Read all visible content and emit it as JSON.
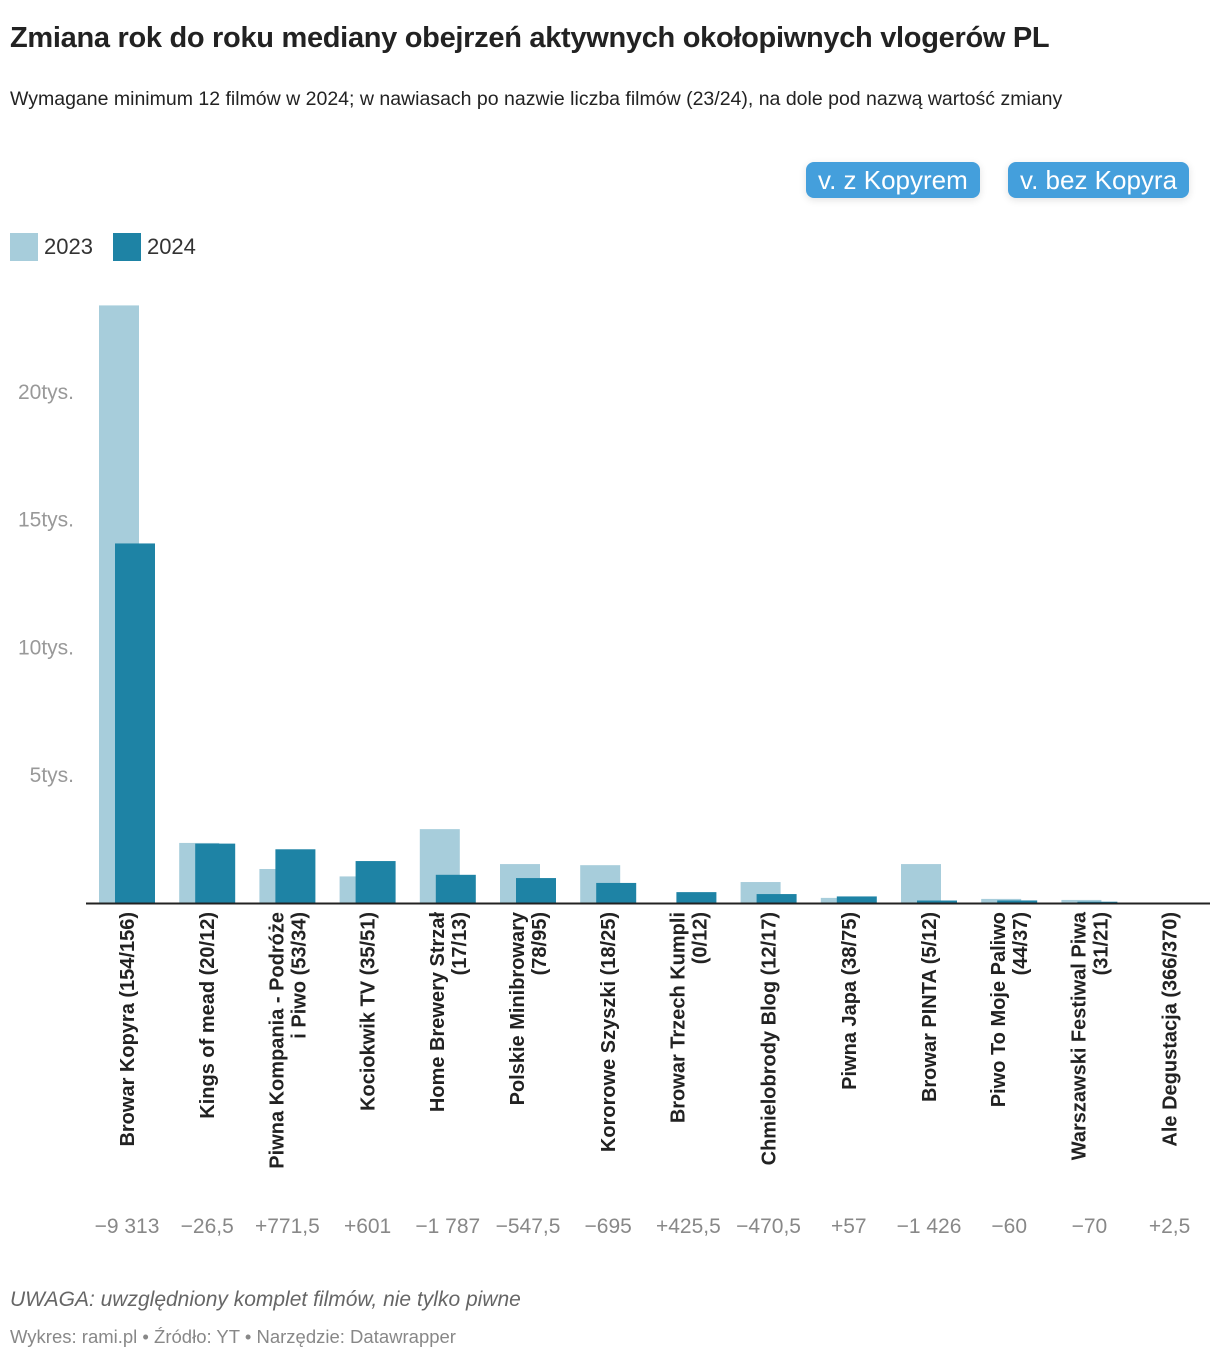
{
  "header": {
    "title": "Zmiana rok do roku mediany obejrzeń aktywnych okołopiwnych vlogerów PL",
    "subtitle": "Wymagane minimum 12 filmów w 2024; w nawiasach po nazwie liczba filmów (23/24), na dole pod nazwą wartość zmiany"
  },
  "buttons": {
    "with_kopyra": "v. z Kopyrem",
    "without_kopyra": "v. bez Kopyra"
  },
  "colors": {
    "y2023": "#a7cddb",
    "y2024": "#1e83a5",
    "button": "#449fdc"
  },
  "chart_data": {
    "type": "bar",
    "legend_position": "top-left",
    "grid": false,
    "ylim": [
      0,
      23500
    ],
    "yticks": [
      {
        "value": 5000,
        "label": "5tys."
      },
      {
        "value": 10000,
        "label": "10tys."
      },
      {
        "value": 15000,
        "label": "15tys."
      },
      {
        "value": 20000,
        "label": "20tys."
      }
    ],
    "categories": [
      [
        "Browar Kopyra (154/156)"
      ],
      [
        "Kings of mead (20/12)"
      ],
      [
        "Piwna Kompania - Podróże",
        "i Piwo (53/34)"
      ],
      [
        "Kociokwik TV (35/51)"
      ],
      [
        "Home Brewery Strzał",
        "(17/13)"
      ],
      [
        "Polskie Minibrowary",
        "(78/95)"
      ],
      [
        "Kororowe Szyszki (18/25)"
      ],
      [
        "Browar Trzech Kumpli",
        "(0/12)"
      ],
      [
        "Chmielobrody Blog (12/17)"
      ],
      [
        "Piwna Japa (38/75)"
      ],
      [
        "Browar PINTA (5/12)"
      ],
      [
        "Piwo To Moje Paliwo",
        "(44/37)"
      ],
      [
        "Warszawski Festiwal Piwa",
        "(31/21)"
      ],
      [
        "Ale Degustacja (366/370)"
      ]
    ],
    "series": [
      {
        "name": "2023",
        "values": [
          23380,
          2350,
          1330,
          1040,
          2890,
          1523,
          1480,
          0,
          820,
          200,
          1523,
          160,
          120,
          10
        ]
      },
      {
        "name": "2024",
        "values": [
          14067,
          2323.5,
          2101.5,
          1641,
          1103,
          975.5,
          785,
          425.5,
          349.5,
          257,
          97,
          100,
          50,
          12.5
        ]
      }
    ],
    "change_labels": [
      "−9 313",
      "−26,5",
      "+771,5",
      "+601",
      "−1 787",
      "−547,5",
      "−695",
      "+425,5",
      "−470,5",
      "+57",
      "−1 426",
      "−60",
      "−70",
      "+2,5"
    ]
  },
  "note": "UWAGA: uwzględniony komplet filmów, nie tylko piwne",
  "footer": "Wykres: rami.pl • Źródło: YT • Narzędzie: Datawrapper"
}
